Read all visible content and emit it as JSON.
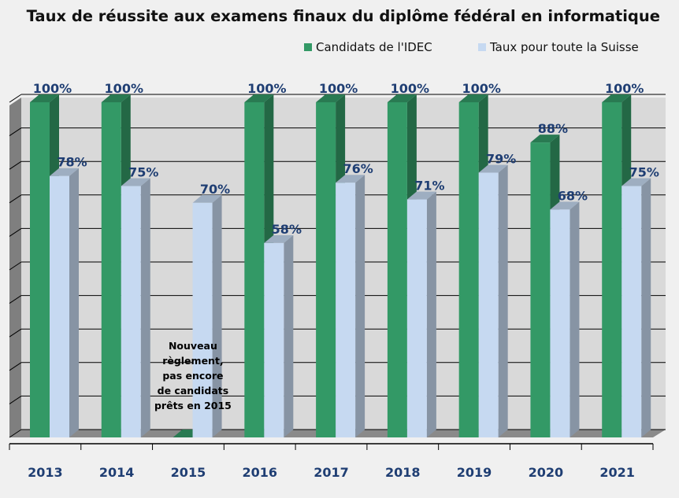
{
  "chart_data": {
    "type": "bar",
    "title": "Taux de réussite aux examens finaux du diplôme fédéral en informatique",
    "categories": [
      "2013",
      "2014",
      "2015",
      "2016",
      "2017",
      "2018",
      "2019",
      "2020",
      "2021"
    ],
    "series": [
      {
        "name": "Candidats de l'IDEC",
        "values": [
          100,
          100,
          0,
          100,
          100,
          100,
          100,
          88,
          100
        ],
        "labels": [
          "100%",
          "100%",
          "",
          "100%",
          "100%",
          "100%",
          "100%",
          "88%",
          "100%"
        ],
        "color": "#339966"
      },
      {
        "name": "Taux pour toute la Suisse",
        "values": [
          78,
          75,
          70,
          58,
          76,
          71,
          79,
          68,
          75
        ],
        "labels": [
          "78%",
          "75%",
          "70%",
          "58%",
          "76%",
          "71%",
          "79%",
          "68%",
          "75%"
        ],
        "color": "#c6d9f1"
      }
    ],
    "ylim": [
      0,
      100
    ],
    "grid": true,
    "legend": "top-right",
    "annotation": {
      "category": "2015",
      "lines": [
        "Nouveau",
        "règlement,",
        "pas encore",
        "de candidats",
        "prêts en 2015"
      ]
    }
  }
}
